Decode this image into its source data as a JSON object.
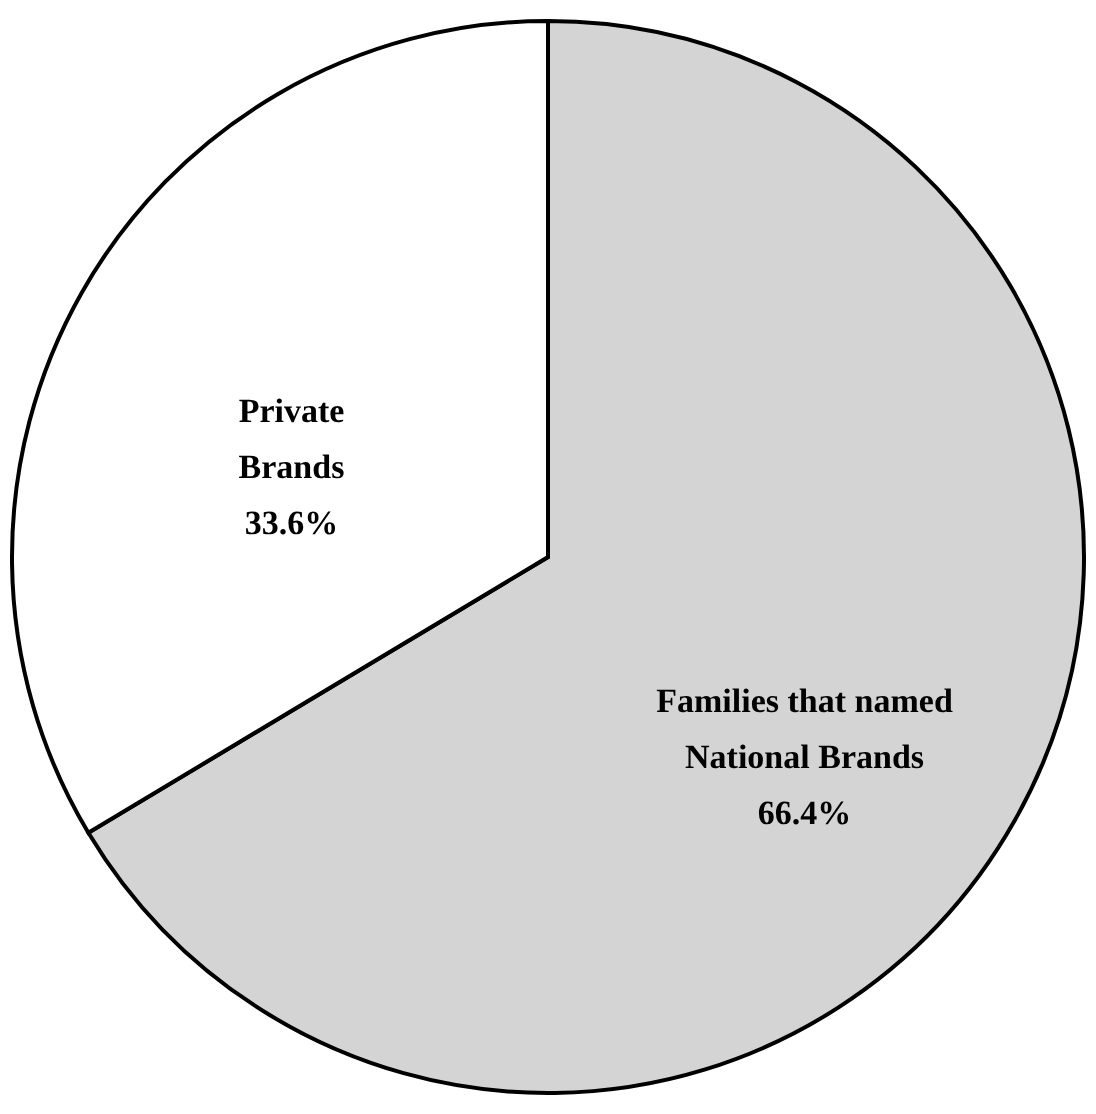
{
  "chart_data": {
    "type": "pie",
    "categories": [
      "Families that named National Brands",
      "Private Brands"
    ],
    "values": [
      66.4,
      33.6
    ],
    "colors": [
      "#d4d4d4",
      "#ffffff"
    ],
    "value_labels": [
      "66.4%",
      "33.6%"
    ],
    "legend": false
  }
}
